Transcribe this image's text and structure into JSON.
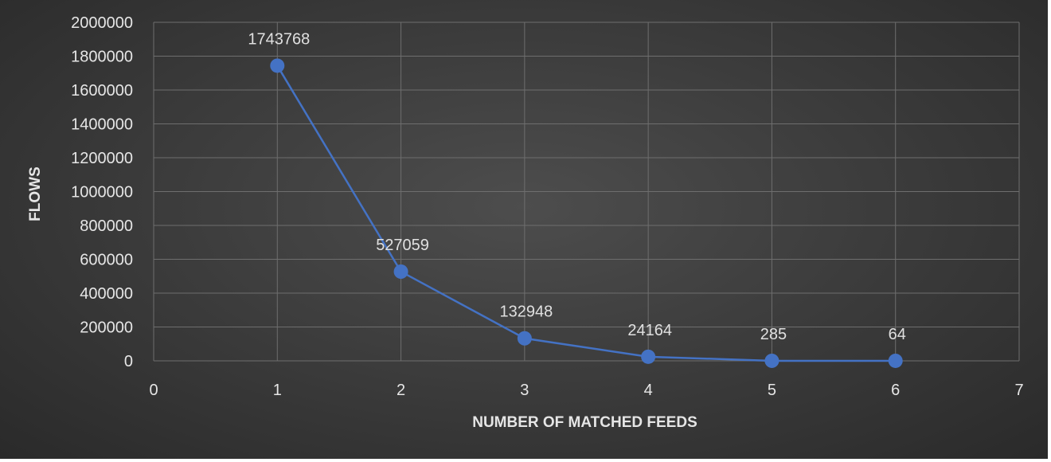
{
  "chart_data": {
    "type": "line",
    "xlabel": "NUMBER OF MATCHED FEEDS",
    "ylabel": "FLOWS",
    "xlim": [
      0,
      7
    ],
    "ylim": [
      0,
      2000000
    ],
    "x_ticks": [
      "0",
      "1",
      "2",
      "3",
      "4",
      "5",
      "6",
      "7"
    ],
    "y_ticks": [
      "0",
      "200000",
      "400000",
      "600000",
      "800000",
      "1000000",
      "1200000",
      "1400000",
      "1600000",
      "1800000",
      "2000000"
    ],
    "grid": true,
    "legend": "none",
    "series": [
      {
        "color": "#4472c4",
        "x": [
          1,
          2,
          3,
          4,
          5,
          6
        ],
        "values": [
          1743768,
          527059,
          132948,
          24164,
          285,
          64
        ],
        "data_labels": [
          "1743768",
          "527059",
          "132948",
          "24164",
          "285",
          "64"
        ]
      }
    ],
    "background_color": "#404040"
  }
}
